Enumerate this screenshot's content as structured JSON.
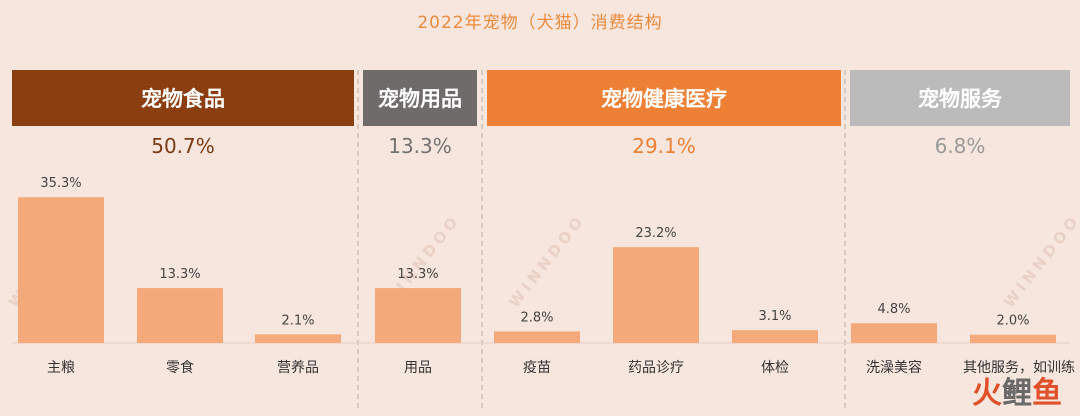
{
  "chart_data": {
    "type": "bar",
    "title": "2022年宠物（犬猫）消费结构",
    "ylim": [
      0,
      40
    ],
    "groups": [
      {
        "name": "宠物食品",
        "total": "50.7%",
        "header_color": "#8b3e10",
        "pct_color": "#7a3b14",
        "categories": [
          "主粮",
          "零食",
          "营养品"
        ],
        "values": [
          35.3,
          13.3,
          2.1
        ],
        "labels": [
          "35.3%",
          "13.3%",
          "2.1%"
        ]
      },
      {
        "name": "宠物用品",
        "total": "13.3%",
        "header_color": "#6e6b6a",
        "pct_color": "#737373",
        "categories": [
          "用品"
        ],
        "values": [
          13.3
        ],
        "labels": [
          "13.3%"
        ]
      },
      {
        "name": "宠物健康医疗",
        "total": "29.1%",
        "header_color": "#ee8035",
        "pct_color": "#ee8035",
        "categories": [
          "疫苗",
          "药品诊疗",
          "体检"
        ],
        "values": [
          2.8,
          23.2,
          3.1
        ],
        "labels": [
          "2.8%",
          "23.2%",
          "3.1%"
        ]
      },
      {
        "name": "宠物服务",
        "total": "6.8%",
        "header_color": "#bcbbbb",
        "pct_color": "#9a9a9a",
        "categories": [
          "洗澡美容",
          "其他服务，如训练等"
        ],
        "values": [
          4.8,
          2.0
        ],
        "labels": [
          "4.8%",
          "2.0%"
        ]
      }
    ],
    "bar_color": "#f4a97a",
    "grid": false
  },
  "watermark": "WINNDOO",
  "brand": {
    "part1": "火",
    "part2": "鲤",
    "part3": "鱼"
  }
}
